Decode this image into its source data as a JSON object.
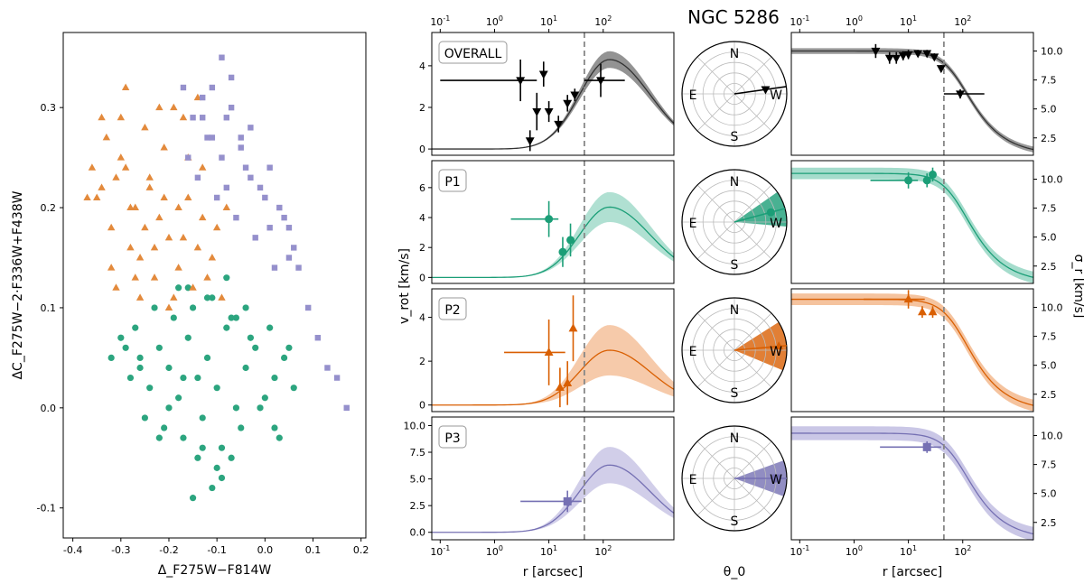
{
  "title": "NGC 5286",
  "colors": {
    "overall": "#333333",
    "p1": "#1b9e77",
    "p2": "#d95f02",
    "p3": "#7570b3",
    "p1_fill": "#8fd3bf",
    "p2_fill": "#f2b486",
    "p3_fill": "#bdb9e0",
    "overall_fill": "#808080"
  },
  "chart_data": [
    {
      "id": "chromosome-map",
      "type": "scatter",
      "xlabel": "Δ_F275W−F814W",
      "ylabel": "ΔC_F275W−2·F336W+F438W",
      "xlim": [
        -0.42,
        0.21
      ],
      "ylim": [
        -0.13,
        0.375
      ],
      "xticks": [
        "-0.4",
        "-0.3",
        "-0.2",
        "-0.1",
        "0.0",
        "0.1",
        "0.2"
      ],
      "yticks": [
        "-0.1",
        "0.0",
        "0.1",
        "0.2",
        "0.3"
      ],
      "series": [
        {
          "name": "P1",
          "marker": "circle",
          "color": "#1b9e77",
          "x": [
            -0.28,
            -0.26,
            -0.24,
            -0.22,
            -0.2,
            -0.18,
            -0.16,
            -0.14,
            -0.12,
            -0.1,
            -0.08,
            -0.06,
            -0.04,
            -0.02,
            0.0,
            0.02,
            0.04,
            0.06,
            -0.27,
            -0.23,
            -0.19,
            -0.15,
            -0.11,
            -0.07,
            -0.03,
            0.01,
            0.05,
            -0.25,
            -0.21,
            -0.17,
            -0.13,
            -0.09,
            -0.05,
            -0.01,
            0.03,
            -0.29,
            -0.14,
            -0.1,
            -0.16,
            -0.12,
            -0.08,
            -0.2,
            -0.18,
            -0.06,
            -0.04,
            0.02,
            -0.26,
            -0.22,
            -0.3,
            -0.32,
            -0.15,
            -0.11,
            -0.13,
            -0.09,
            -0.17,
            -0.07
          ],
          "y": [
            0.03,
            0.05,
            0.02,
            0.06,
            0.04,
            0.01,
            0.07,
            0.03,
            0.05,
            0.02,
            0.08,
            0.0,
            0.04,
            0.06,
            0.01,
            0.03,
            0.05,
            0.02,
            0.08,
            0.1,
            0.09,
            0.1,
            0.11,
            0.09,
            0.07,
            0.08,
            0.06,
            -0.01,
            -0.02,
            -0.03,
            -0.01,
            -0.04,
            -0.02,
            0.0,
            -0.03,
            0.06,
            -0.05,
            -0.06,
            0.12,
            0.11,
            0.13,
            0.0,
            0.12,
            0.09,
            0.1,
            -0.02,
            0.04,
            -0.03,
            0.07,
            0.05,
            -0.09,
            -0.08,
            -0.04,
            -0.07,
            0.03,
            -0.05
          ]
        },
        {
          "name": "P2",
          "marker": "triangle",
          "color": "#d95f02",
          "x": [
            -0.34,
            -0.32,
            -0.3,
            -0.28,
            -0.26,
            -0.24,
            -0.22,
            -0.2,
            -0.18,
            -0.16,
            -0.14,
            -0.12,
            -0.1,
            -0.33,
            -0.31,
            -0.29,
            -0.27,
            -0.25,
            -0.23,
            -0.21,
            -0.19,
            -0.17,
            -0.15,
            -0.13,
            -0.11,
            -0.35,
            -0.3,
            -0.26,
            -0.22,
            -0.18,
            -0.14,
            -0.28,
            -0.24,
            -0.2,
            -0.16,
            -0.36,
            -0.32,
            -0.29,
            -0.25,
            -0.21,
            -0.17,
            -0.13,
            -0.27,
            -0.23,
            -0.19,
            -0.09,
            -0.08,
            -0.31,
            -0.34,
            -0.37
          ],
          "y": [
            0.22,
            0.18,
            0.25,
            0.2,
            0.15,
            0.23,
            0.19,
            0.17,
            0.14,
            0.21,
            0.16,
            0.13,
            0.18,
            0.27,
            0.12,
            0.24,
            0.2,
            0.28,
            0.13,
            0.26,
            0.11,
            0.29,
            0.12,
            0.24,
            0.15,
            0.21,
            0.29,
            0.11,
            0.3,
            0.2,
            0.31,
            0.16,
            0.22,
            0.1,
            0.25,
            0.24,
            0.14,
            0.32,
            0.18,
            0.21,
            0.17,
            0.19,
            0.13,
            0.16,
            0.3,
            0.11,
            0.2,
            0.23,
            0.29,
            0.21
          ]
        },
        {
          "name": "P3",
          "marker": "square",
          "color": "#7570b3",
          "x": [
            -0.17,
            -0.15,
            -0.13,
            -0.11,
            -0.09,
            -0.07,
            -0.05,
            -0.03,
            -0.01,
            0.01,
            0.03,
            0.05,
            -0.14,
            -0.12,
            -0.1,
            -0.08,
            -0.06,
            -0.04,
            -0.02,
            0.0,
            0.02,
            0.04,
            0.06,
            -0.16,
            -0.11,
            -0.07,
            -0.03,
            0.01,
            0.05,
            0.07,
            0.09,
            0.11,
            0.13,
            0.15,
            0.17,
            -0.09,
            -0.13,
            -0.05,
            -0.08
          ],
          "y": [
            0.32,
            0.29,
            0.31,
            0.27,
            0.25,
            0.3,
            0.26,
            0.28,
            0.22,
            0.24,
            0.2,
            0.18,
            0.23,
            0.27,
            0.21,
            0.29,
            0.19,
            0.24,
            0.17,
            0.21,
            0.14,
            0.19,
            0.16,
            0.25,
            0.32,
            0.33,
            0.23,
            0.18,
            0.15,
            0.14,
            0.1,
            0.07,
            0.04,
            0.03,
            0.0,
            0.35,
            0.29,
            0.27,
            0.22
          ]
        }
      ]
    },
    {
      "id": "vrot-profiles",
      "type": "line",
      "xlabel": "r [arcsec]",
      "ylabel": "v_rot [km/s]",
      "xscale": "log",
      "xlim": [
        0.07,
        2000
      ],
      "xticks": [
        "10^-1",
        "10^0",
        "10^1",
        "10^2"
      ],
      "vline_r": 45,
      "panels": [
        {
          "label": "OVERALL",
          "ylim": [
            -0.3,
            5.6
          ],
          "yticks": [
            "0",
            "2",
            "4"
          ],
          "color": "#333333",
          "fill": "#808080",
          "marker": "triangle-down",
          "peak": 4.3,
          "band": 0.8,
          "points": [
            {
              "r": 3,
              "v": 3.3,
              "xlo": 0.1,
              "xhi": 6,
              "err": 1.0
            },
            {
              "r": 4.5,
              "v": 0.4,
              "err": 0.5
            },
            {
              "r": 6,
              "v": 1.8,
              "err": 0.9
            },
            {
              "r": 8,
              "v": 3.6,
              "err": 0.6
            },
            {
              "r": 10,
              "v": 1.8,
              "err": 0.5
            },
            {
              "r": 15,
              "v": 1.2,
              "err": 0.4
            },
            {
              "r": 22,
              "v": 2.2,
              "err": 0.4
            },
            {
              "r": 30,
              "v": 2.6,
              "err": 0.3
            },
            {
              "r": 90,
              "v": 3.3,
              "xlo": 45,
              "xhi": 250,
              "err": 0.8
            }
          ]
        },
        {
          "label": "P1",
          "ylim": [
            -0.4,
            7.8
          ],
          "yticks": [
            "0",
            "2",
            "4",
            "6"
          ],
          "color": "#1b9e77",
          "fill": "#8fd3bf",
          "marker": "circle",
          "peak": 4.7,
          "band": 2.0,
          "points": [
            {
              "r": 10,
              "v": 3.9,
              "xlo": 2,
              "xhi": 15,
              "err": 1.2
            },
            {
              "r": 18,
              "v": 1.7,
              "err": 1.0
            },
            {
              "r": 25,
              "v": 2.5,
              "err": 1.1
            }
          ]
        },
        {
          "label": "P2",
          "ylim": [
            -0.3,
            5.3
          ],
          "yticks": [
            "0",
            "2",
            "4"
          ],
          "color": "#d95f02",
          "fill": "#f2b486",
          "marker": "triangle",
          "peak": 2.5,
          "band": 2.3,
          "points": [
            {
              "r": 10,
              "v": 2.4,
              "xlo": 1.5,
              "xhi": 20,
              "err": 1.5
            },
            {
              "r": 16,
              "v": 0.8,
              "err": 0.9
            },
            {
              "r": 22,
              "v": 1.0,
              "err": 1.0
            },
            {
              "r": 28,
              "v": 3.5,
              "err": 1.5
            }
          ]
        },
        {
          "label": "P3",
          "ylim": [
            -0.7,
            10.8
          ],
          "yticks": [
            "0.0",
            "2.5",
            "5.0",
            "7.5",
            "10.0"
          ],
          "color": "#7570b3",
          "fill": "#bdb9e0",
          "marker": "square",
          "peak": 6.3,
          "band": 3.4,
          "points": [
            {
              "r": 22,
              "v": 2.9,
              "xlo": 3,
              "xhi": 40,
              "err": 1.0
            }
          ]
        }
      ]
    },
    {
      "id": "theta0-polar",
      "type": "polar",
      "xlabel": "θ_0",
      "cardinal": [
        "N",
        "E",
        "S",
        "W"
      ],
      "panels": [
        {
          "label": "OVERALL",
          "theta0_deg": 8,
          "width_deg": 5,
          "radius": 0.6,
          "color": "#333333"
        },
        {
          "label": "P1",
          "theta0_deg": 15,
          "width_deg": 40,
          "radius": 0.72,
          "color": "#1b9e77"
        },
        {
          "label": "P2",
          "theta0_deg": 5,
          "width_deg": 55,
          "radius": 0.85,
          "color": "#d95f02"
        },
        {
          "label": "P3",
          "theta0_deg": 0,
          "width_deg": 40,
          "radius": 0.8,
          "color": "#7570b3"
        }
      ]
    },
    {
      "id": "sigma-profiles",
      "type": "line",
      "xlabel": "r [arcsec]",
      "ylabel": "σ_r [km/s]",
      "xscale": "log",
      "xlim": [
        0.07,
        2000
      ],
      "xticks": [
        "10^-1",
        "10^0",
        "10^1",
        "10^2"
      ],
      "vline_r": 45,
      "ylim": [
        1.0,
        11.6
      ],
      "yticks": [
        "2.5",
        "5.0",
        "7.5",
        "10.0"
      ],
      "panels": [
        {
          "label": "OVERALL",
          "sigma0": 10.0,
          "band": 0.25,
          "color": "#333333",
          "fill": "#808080",
          "marker": "triangle-down",
          "points": [
            {
              "r": 2.5,
              "s": 10.0,
              "err": 0.6
            },
            {
              "r": 4.5,
              "s": 9.4,
              "err": 0.5
            },
            {
              "r": 6,
              "s": 9.4,
              "err": 0.5
            },
            {
              "r": 8,
              "s": 9.6,
              "err": 0.4
            },
            {
              "r": 10,
              "s": 9.7,
              "err": 0.4
            },
            {
              "r": 15,
              "s": 9.8,
              "err": 0.3
            },
            {
              "r": 22,
              "s": 9.8,
              "err": 0.3
            },
            {
              "r": 30,
              "s": 9.5,
              "err": 0.3
            },
            {
              "r": 40,
              "s": 8.5,
              "err": 0.3
            },
            {
              "r": 90,
              "s": 6.3,
              "xlo": 45,
              "xhi": 250,
              "err": 0.4
            }
          ]
        },
        {
          "label": "P1",
          "sigma0": 10.5,
          "band": 0.5,
          "color": "#1b9e77",
          "fill": "#8fd3bf",
          "marker": "circle",
          "points": [
            {
              "r": 10,
              "s": 9.9,
              "xlo": 2,
              "xhi": 15,
              "err": 0.7
            },
            {
              "r": 22,
              "s": 9.9,
              "err": 0.6
            },
            {
              "r": 28,
              "s": 10.4,
              "err": 0.6
            }
          ]
        },
        {
          "label": "P2",
          "sigma0": 10.7,
          "band": 0.5,
          "color": "#d95f02",
          "fill": "#f2b486",
          "marker": "triangle",
          "points": [
            {
              "r": 10,
              "s": 10.7,
              "xlo": 1.5,
              "xhi": 20,
              "err": 0.8
            },
            {
              "r": 18,
              "s": 9.6,
              "err": 0.5
            },
            {
              "r": 28,
              "s": 9.6,
              "err": 0.5
            }
          ]
        },
        {
          "label": "P3",
          "sigma0": 10.2,
          "band": 0.6,
          "color": "#7570b3",
          "fill": "#bdb9e0",
          "marker": "square",
          "points": [
            {
              "r": 22,
              "s": 9.0,
              "xlo": 3,
              "xhi": 40,
              "err": 0.5
            }
          ]
        }
      ]
    }
  ]
}
